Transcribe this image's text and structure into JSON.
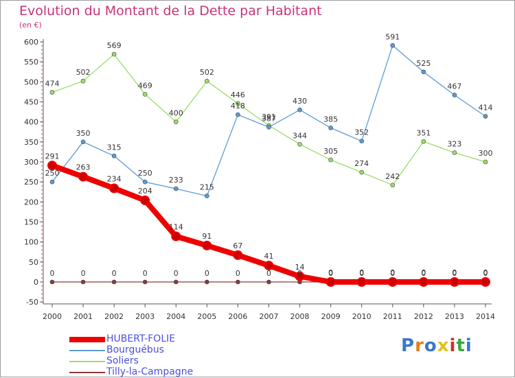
{
  "title": "Evolution du Montant de la Dette par Habitant",
  "unit": "(en €)",
  "logo": {
    "text": "Proxiti",
    "colors": [
      "#3a78c8",
      "#e0811c",
      "#3a78c8",
      "#e0c21c",
      "#d82a2a",
      "#3aa83a",
      "#3a78c8"
    ]
  },
  "chart_data": {
    "type": "line",
    "title": "Evolution du Montant de la Dette par Habitant",
    "subtitle": "(en €)",
    "xlabel": "",
    "ylabel": "",
    "x": [
      "2000",
      "2001",
      "2002",
      "2003",
      "2004",
      "2005",
      "2006",
      "2007",
      "2008",
      "2009",
      "2010",
      "2011",
      "2012",
      "2013",
      "2014"
    ],
    "ylim": [
      -50,
      600
    ],
    "yticks": [
      -50,
      0,
      50,
      100,
      150,
      200,
      250,
      300,
      350,
      400,
      450,
      500,
      550,
      600
    ],
    "grid": false,
    "legend_position": "bottom-left",
    "series": [
      {
        "name": "HUBERT-FOLIE",
        "color": "#ee0000",
        "emphasis": true,
        "values": [
          291,
          263,
          234,
          204,
          114,
          91,
          67,
          41,
          14,
          0,
          0,
          0,
          0,
          0,
          0
        ]
      },
      {
        "name": "Bourguébus",
        "color": "#5b9bd5",
        "values": [
          250,
          350,
          315,
          250,
          233,
          215,
          418,
          387,
          430,
          385,
          352,
          591,
          525,
          467,
          414
        ]
      },
      {
        "name": "Soliers",
        "color": "#99dd66",
        "values": [
          474,
          502,
          569,
          469,
          400,
          502,
          446,
          391,
          344,
          305,
          274,
          242,
          351,
          323,
          300
        ]
      },
      {
        "name": "Tilly-la-Campagne",
        "color": "#8b3a3a",
        "values": [
          0,
          0,
          0,
          0,
          0,
          0,
          0,
          0,
          0,
          0,
          0,
          0,
          0,
          0,
          0
        ]
      }
    ]
  }
}
